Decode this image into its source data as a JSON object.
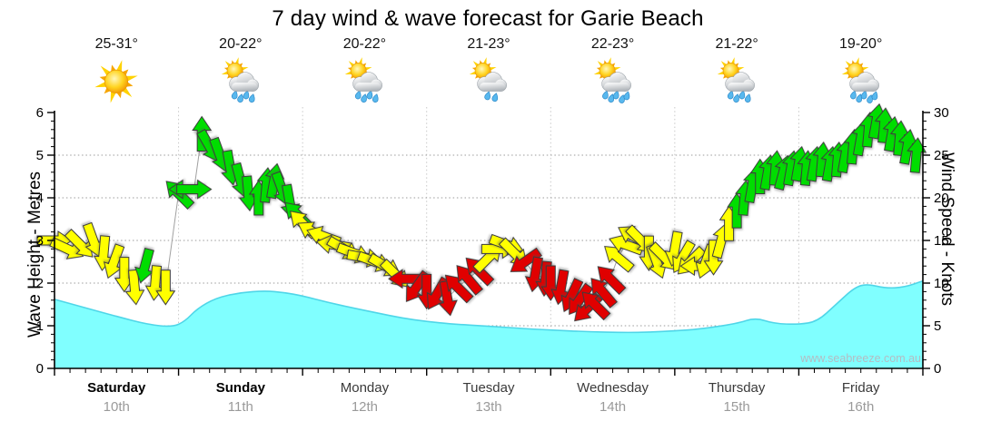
{
  "title": "7 day wind & wave forecast for Garie Beach",
  "watermark": "www.seabreeze.com.au",
  "axes": {
    "left_label": "Wave Height - Metres",
    "right_label": "Wind Speed - Knots",
    "left_ticks": [
      0,
      1,
      2,
      3,
      4,
      5,
      6
    ],
    "right_ticks": [
      0,
      5,
      10,
      15,
      20,
      25,
      30
    ],
    "left_minor_step": 0.2,
    "right_minor_step": 1,
    "x_minor_hours": 3
  },
  "days": [
    {
      "name": "Saturday",
      "date": "10th",
      "temp": "25-31°",
      "icon": "sunny",
      "weekend": true
    },
    {
      "name": "Sunday",
      "date": "11th",
      "temp": "20-22°",
      "icon": "showers-4",
      "weekend": true
    },
    {
      "name": "Monday",
      "date": "12th",
      "temp": "20-22°",
      "icon": "showers-4",
      "weekend": false
    },
    {
      "name": "Tuesday",
      "date": "13th",
      "temp": "21-23°",
      "icon": "showers-2",
      "weekend": false
    },
    {
      "name": "Wednesday",
      "date": "14th",
      "temp": "22-23°",
      "icon": "showers-5",
      "weekend": false
    },
    {
      "name": "Thursday",
      "date": "15th",
      "temp": "21-22°",
      "icon": "showers-4",
      "weekend": false
    },
    {
      "name": "Friday",
      "date": "16th",
      "temp": "19-20°",
      "icon": "showers-5",
      "weekend": false
    }
  ],
  "chart_data": {
    "type": "area+vectors",
    "title": "7 day wind & wave forecast for Garie Beach",
    "x_axis": {
      "days": 7,
      "tick_unit": "3-hourly",
      "day_labels": [
        "Saturday 10th",
        "Sunday 11th",
        "Monday 12th",
        "Tuesday 13th",
        "Wednesday 14th",
        "Thursday 15th",
        "Friday 16th"
      ]
    },
    "y_left": {
      "label": "Wave Height - Metres",
      "min": 0,
      "max": 6
    },
    "y_right": {
      "label": "Wind Speed - Knots",
      "min": 0,
      "max": 30
    },
    "gridlines": {
      "horizontal_metres": [
        1,
        2,
        3,
        4,
        5
      ],
      "vertical_day_boundaries": true
    },
    "wave_series": {
      "name": "Wave Height (Metres)",
      "point_format": [
        "day_fraction",
        "metres"
      ],
      "points": [
        [
          0,
          1.62
        ],
        [
          0.25,
          1.42
        ],
        [
          0.5,
          1.22
        ],
        [
          0.75,
          1.03
        ],
        [
          0.95,
          0.97
        ],
        [
          1.05,
          1.1
        ],
        [
          1.15,
          1.4
        ],
        [
          1.3,
          1.65
        ],
        [
          1.5,
          1.78
        ],
        [
          1.7,
          1.82
        ],
        [
          1.85,
          1.78
        ],
        [
          2.0,
          1.7
        ],
        [
          2.2,
          1.55
        ],
        [
          2.4,
          1.42
        ],
        [
          2.6,
          1.3
        ],
        [
          2.8,
          1.18
        ],
        [
          3.0,
          1.1
        ],
        [
          3.2,
          1.04
        ],
        [
          3.5,
          0.99
        ],
        [
          3.8,
          0.93
        ],
        [
          4.0,
          0.9
        ],
        [
          4.3,
          0.86
        ],
        [
          4.6,
          0.84
        ],
        [
          4.8,
          0.85
        ],
        [
          5.0,
          0.88
        ],
        [
          5.2,
          0.92
        ],
        [
          5.5,
          1.05
        ],
        [
          5.65,
          1.19
        ],
        [
          5.8,
          1.05
        ],
        [
          6.0,
          1.03
        ],
        [
          6.15,
          1.1
        ],
        [
          6.3,
          1.5
        ],
        [
          6.45,
          1.9
        ],
        [
          6.55,
          1.98
        ],
        [
          6.7,
          1.88
        ],
        [
          6.85,
          1.9
        ],
        [
          7.0,
          2.05
        ]
      ]
    },
    "wind_series": {
      "name": "Wind Speed (Knots) with direction arrows",
      "point_format": [
        "day",
        "hour",
        "knots",
        "arrow_screen_angle_deg_0_is_up",
        "color_code"
      ],
      "colors": {
        "y": "#ffff00",
        "g": "#00dd00",
        "r": "#e00000"
      },
      "points": [
        [
          0,
          0,
          15,
          90,
          "y"
        ],
        [
          0,
          2.5,
          14,
          115,
          "y"
        ],
        [
          0,
          5,
          14.5,
          135,
          "y"
        ],
        [
          0,
          7.5,
          15,
          160,
          "y"
        ],
        [
          0,
          9.5,
          13.5,
          185,
          "y"
        ],
        [
          0,
          11.5,
          12.5,
          200,
          "y"
        ],
        [
          0,
          13.5,
          11,
          180,
          "y"
        ],
        [
          0,
          15.5,
          9.5,
          175,
          "y"
        ],
        [
          0,
          17.5,
          12,
          195,
          "g"
        ],
        [
          0,
          19.5,
          10,
          185,
          "y"
        ],
        [
          0,
          21.5,
          9.5,
          180,
          "y"
        ],
        [
          1,
          0,
          20.5,
          315,
          "g"
        ],
        [
          1,
          1.5,
          21,
          270,
          "g"
        ],
        [
          1,
          3,
          21,
          90,
          "g"
        ],
        [
          1,
          4.5,
          27.5,
          0,
          "g"
        ],
        [
          1,
          6,
          26,
          150,
          "g"
        ],
        [
          1,
          8,
          25,
          160,
          "g"
        ],
        [
          1,
          10,
          23.5,
          170,
          "g"
        ],
        [
          1,
          12,
          22,
          165,
          "g"
        ],
        [
          1,
          13.5,
          20.5,
          175,
          "g"
        ],
        [
          1,
          15.5,
          20,
          0,
          "g"
        ],
        [
          1,
          17,
          21.5,
          5,
          "g"
        ],
        [
          1,
          18.5,
          22,
          10,
          "g"
        ],
        [
          1,
          20,
          21,
          160,
          "g"
        ],
        [
          1,
          21.5,
          19.5,
          170,
          "g"
        ],
        [
          1,
          23,
          18,
          315,
          "g"
        ],
        [
          2,
          0,
          17,
          315,
          "y"
        ],
        [
          2,
          2,
          16,
          300,
          "y"
        ],
        [
          2,
          4,
          15.5,
          290,
          "y"
        ],
        [
          2,
          6,
          14.5,
          280,
          "y"
        ],
        [
          2,
          8,
          14,
          120,
          "y"
        ],
        [
          2,
          10,
          13.5,
          110,
          "y"
        ],
        [
          2,
          12,
          13,
          100,
          "y"
        ],
        [
          2,
          14,
          12.5,
          110,
          "y"
        ],
        [
          2,
          16,
          12,
          120,
          "y"
        ],
        [
          2,
          18,
          11,
          135,
          "y"
        ],
        [
          2,
          20,
          10.5,
          270,
          "r"
        ],
        [
          2,
          22,
          9.5,
          215,
          "r"
        ],
        [
          3,
          0,
          9,
          180,
          "r"
        ],
        [
          3,
          2,
          8.7,
          210,
          "r"
        ],
        [
          3,
          4,
          8.2,
          170,
          "r"
        ],
        [
          3,
          6,
          9.5,
          315,
          "r"
        ],
        [
          3,
          8,
          10.5,
          320,
          "r"
        ],
        [
          3,
          10,
          11.5,
          315,
          "r"
        ],
        [
          3,
          12,
          13,
          45,
          "y"
        ],
        [
          3,
          14,
          14,
          90,
          "y"
        ],
        [
          3,
          15.5,
          14.5,
          110,
          "y"
        ],
        [
          3,
          17,
          13.5,
          135,
          "y"
        ],
        [
          3,
          19,
          12.5,
          235,
          "r"
        ],
        [
          3,
          21,
          11,
          190,
          "r"
        ],
        [
          3,
          23,
          10.5,
          185,
          "r"
        ],
        [
          4,
          0,
          10,
          180,
          "r"
        ],
        [
          4,
          2,
          9.5,
          190,
          "r"
        ],
        [
          4,
          4,
          8.5,
          205,
          "r"
        ],
        [
          4,
          5.5,
          8,
          215,
          "r"
        ],
        [
          4,
          7,
          7,
          225,
          "r"
        ],
        [
          4,
          8.5,
          7.5,
          315,
          "r"
        ],
        [
          4,
          10,
          9,
          320,
          "r"
        ],
        [
          4,
          11.5,
          10.5,
          315,
          "r"
        ],
        [
          4,
          13,
          13,
          310,
          "y"
        ],
        [
          4,
          14.5,
          14.5,
          290,
          "y"
        ],
        [
          4,
          16,
          15.5,
          300,
          "y"
        ],
        [
          4,
          17.5,
          15,
          135,
          "y"
        ],
        [
          4,
          19,
          13.5,
          180,
          "y"
        ],
        [
          4,
          20.5,
          12.5,
          160,
          "y"
        ],
        [
          4,
          22,
          13,
          135,
          "y"
        ],
        [
          5,
          0,
          14,
          190,
          "y"
        ],
        [
          5,
          1.5,
          13,
          210,
          "y"
        ],
        [
          5,
          3,
          12.5,
          225,
          "y"
        ],
        [
          5,
          4.5,
          12,
          270,
          "y"
        ],
        [
          5,
          6,
          12.5,
          200,
          "y"
        ],
        [
          5,
          7.5,
          13,
          180,
          "y"
        ],
        [
          5,
          9,
          15,
          15,
          "y"
        ],
        [
          5,
          10.5,
          17,
          0,
          "y"
        ],
        [
          5,
          12,
          18.5,
          0,
          "g"
        ],
        [
          5,
          13.5,
          20,
          5,
          "g"
        ],
        [
          5,
          15,
          21.5,
          10,
          "g"
        ],
        [
          5,
          16.5,
          22.5,
          0,
          "g"
        ],
        [
          5,
          18,
          23,
          10,
          "g"
        ],
        [
          5,
          19.5,
          23.5,
          5,
          "g"
        ],
        [
          5,
          21,
          23,
          15,
          "g"
        ],
        [
          5,
          22.5,
          23.5,
          10,
          "g"
        ],
        [
          6,
          0,
          24,
          10,
          "g"
        ],
        [
          6,
          1.5,
          23.5,
          5,
          "g"
        ],
        [
          6,
          3,
          24,
          10,
          "g"
        ],
        [
          6,
          4.5,
          24.5,
          5,
          "g"
        ],
        [
          6,
          6,
          24,
          10,
          "g"
        ],
        [
          6,
          7.5,
          24.5,
          5,
          "g"
        ],
        [
          6,
          9,
          25,
          10,
          "g"
        ],
        [
          6,
          10.5,
          26,
          5,
          "g"
        ],
        [
          6,
          12,
          27,
          10,
          "g"
        ],
        [
          6,
          13.5,
          28,
          5,
          "g"
        ],
        [
          6,
          15,
          29,
          10,
          "g"
        ],
        [
          6,
          16.5,
          28.5,
          5,
          "g"
        ],
        [
          6,
          18,
          27.5,
          10,
          "g"
        ],
        [
          6,
          19.5,
          27,
          5,
          "g"
        ],
        [
          6,
          21,
          26,
          10,
          "g"
        ],
        [
          6,
          22.75,
          25,
          5,
          "g"
        ]
      ]
    },
    "style": {
      "wave_fill": "#80ffff",
      "wave_edge": "#4fd6e8",
      "wind_line": "#a0a0a0",
      "grid_h": "#9b9b9b",
      "grid_v": "#c9c9c9",
      "axis": "#000000",
      "arrow_outline": "#3c3c3c"
    }
  }
}
